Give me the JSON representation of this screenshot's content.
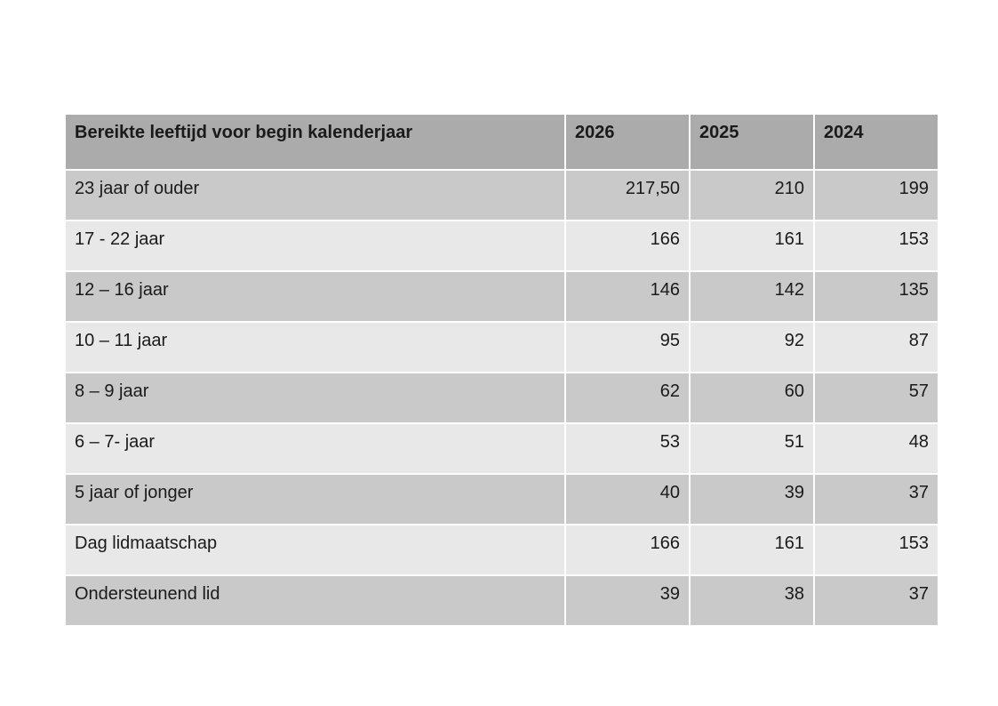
{
  "page": {
    "background": "#ffffff"
  },
  "table": {
    "colors": {
      "header_bg": "#ababab",
      "row_dark": "#c9c9c9",
      "row_light": "#e8e8e8",
      "divider": "#ffffff",
      "text": "#1a1a1a"
    },
    "header": {
      "label": "Bereikte leeftijd voor begin kalenderjaar",
      "years": [
        "2026",
        "2025",
        "2024"
      ]
    },
    "rows": [
      {
        "label": "23 jaar of ouder",
        "y2026": "217,50",
        "y2025": "210",
        "y2024": "199"
      },
      {
        "label": "17 - 22 jaar",
        "y2026": "166",
        "y2025": "161",
        "y2024": "153"
      },
      {
        "label": "12 – 16 jaar",
        "y2026": "146",
        "y2025": "142",
        "y2024": "135"
      },
      {
        "label": "10 – 11 jaar",
        "y2026": "95",
        "y2025": "92",
        "y2024": "87"
      },
      {
        "label": "8 – 9 jaar",
        "y2026": "62",
        "y2025": "60",
        "y2024": "57"
      },
      {
        "label": "6 – 7- jaar",
        "y2026": "53",
        "y2025": "51",
        "y2024": "48"
      },
      {
        "label": "5 jaar of jonger",
        "y2026": "40",
        "y2025": "39",
        "y2024": "37"
      },
      {
        "label": "Dag lidmaatschap",
        "y2026": "166",
        "y2025": "161",
        "y2024": "153"
      },
      {
        "label": "Ondersteunend lid",
        "y2026": "39",
        "y2025": "38",
        "y2024": "37"
      }
    ]
  }
}
